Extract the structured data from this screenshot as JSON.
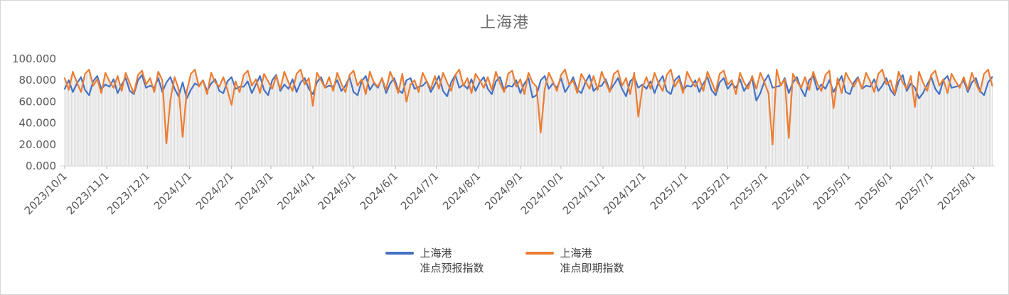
{
  "title": "上海港",
  "colors": {
    "series_forecast": "#4472C4",
    "series_spot": "#ED7D31",
    "axis_line": "#D9D9D9",
    "tick_mark": "#BFBFBF",
    "axis_text": "#595959",
    "title_text": "#6F6F6F",
    "legend_text": "#3F3F3F",
    "drop_lines": "#DBDBDB",
    "background": "#FFFFFF"
  },
  "legend": {
    "items": [
      {
        "line1": "上海港",
        "line2": "准点预报指数",
        "color": "#4472C4"
      },
      {
        "line1": "上海港",
        "line2": "准点即期指数",
        "color": "#ED7D31"
      }
    ]
  },
  "chart_data": {
    "type": "line",
    "title": "上海港",
    "xlabel": "",
    "ylabel": "",
    "ylim": [
      0,
      100
    ],
    "grid": "none",
    "legend_position": "bottom",
    "x_start_date": "2023/10/1",
    "x_step_days": 3,
    "x_tick_labels": [
      "2023/10/1",
      "2023/11/1",
      "2023/12/1",
      "2024/1/1",
      "2024/2/1",
      "2024/3/1",
      "2024/4/1",
      "2024/5/1",
      "2024/6/1",
      "2024/7/1",
      "2024/8/1",
      "2024/9/1",
      "2024/10/1",
      "2024/11/1",
      "2024/12/1",
      "2025/1/1",
      "2025/2/1",
      "2025/3/1",
      "2025/4/1",
      "2025/5/1",
      "2025/6/1",
      "2025/7/1",
      "2025/8/1"
    ],
    "y_ticks": [
      {
        "label": "0.000",
        "value": 0
      },
      {
        "label": "20.000",
        "value": 20
      },
      {
        "label": "40.000",
        "value": 40
      },
      {
        "label": "60.000",
        "value": 60
      },
      {
        "label": "80.000",
        "value": 80
      },
      {
        "label": "100.000",
        "value": 100
      }
    ],
    "plot_style": {
      "drop_lines": true,
      "drop_line_color": "#DBDBDB"
    },
    "series": [
      {
        "name": "上海港准点预报指数",
        "color": "#4472C4",
        "values": [
          72,
          80,
          69,
          77,
          83,
          71,
          66,
          79,
          84,
          72,
          76,
          74,
          81,
          68,
          76,
          82,
          70,
          67,
          80,
          85,
          73,
          75,
          73,
          82,
          69,
          78,
          83,
          72,
          65,
          78,
          63,
          71,
          77,
          75,
          80,
          70,
          77,
          81,
          70,
          68,
          79,
          83,
          72,
          74,
          74,
          79,
          68,
          76,
          84,
          71,
          66,
          80,
          85,
          70,
          76,
          72,
          81,
          69,
          78,
          82,
          72,
          67,
          78,
          83,
          73,
          75,
          74,
          80,
          70,
          75,
          83,
          69,
          66,
          79,
          84,
          71,
          77,
          73,
          82,
          68,
          77,
          82,
          71,
          68,
          80,
          82,
          72,
          74,
          75,
          79,
          69,
          76,
          84,
          70,
          65,
          78,
          85,
          73,
          76,
          72,
          81,
          70,
          78,
          83,
          72,
          67,
          79,
          83,
          71,
          75,
          74,
          80,
          68,
          77,
          82,
          64,
          66,
          80,
          84,
          72,
          77,
          73,
          82,
          69,
          75,
          83,
          71,
          68,
          78,
          85,
          70,
          74,
          75,
          81,
          70,
          76,
          82,
          72,
          65,
          79,
          83,
          73,
          76,
          72,
          79,
          68,
          78,
          84,
          70,
          67,
          80,
          84,
          71,
          75,
          74,
          80,
          69,
          77,
          83,
          71,
          66,
          78,
          82,
          72,
          77,
          73,
          81,
          70,
          76,
          82,
          61,
          68,
          79,
          85,
          73,
          74,
          75,
          82,
          68,
          78,
          83,
          72,
          65,
          80,
          84,
          71,
          76,
          72,
          80,
          69,
          77,
          84,
          69,
          67,
          78,
          83,
          72,
          75,
          74,
          81,
          70,
          75,
          82,
          71,
          66,
          79,
          85,
          70,
          77,
          73,
          63,
          68,
          76,
          83,
          72,
          67,
          80,
          84,
          73,
          74,
          75,
          80,
          69,
          78,
          82,
          70,
          66,
          78,
          83
        ]
      },
      {
        "name": "上海港准点即期指数",
        "color": "#ED7D31",
        "values": [
          82,
          71,
          88,
          78,
          69,
          86,
          90,
          75,
          81,
          68,
          87,
          79,
          73,
          84,
          70,
          87,
          77,
          68,
          85,
          89,
          76,
          82,
          69,
          88,
          80,
          21,
          62,
          83,
          72,
          27,
          70,
          86,
          90,
          74,
          80,
          67,
          87,
          78,
          74,
          83,
          71,
          57,
          79,
          69,
          85,
          89,
          75,
          81,
          68,
          86,
          79,
          72,
          84,
          72,
          88,
          78,
          70,
          86,
          90,
          76,
          82,
          56,
          87,
          80,
          73,
          83,
          70,
          87,
          77,
          69,
          85,
          89,
          75,
          81,
          67,
          88,
          78,
          74,
          82,
          71,
          88,
          79,
          68,
          86,
          60,
          76,
          80,
          69,
          87,
          79,
          72,
          84,
          72,
          87,
          78,
          70,
          85,
          90,
          75,
          82,
          68,
          86,
          80,
          73,
          83,
          71,
          88,
          77,
          69,
          86,
          89,
          74,
          81,
          67,
          87,
          78,
          74,
          31,
          72,
          87,
          79,
          70,
          85,
          90,
          76,
          80,
          68,
          86,
          79,
          72,
          84,
          71,
          88,
          78,
          69,
          86,
          89,
          75,
          82,
          67,
          87,
          46,
          73,
          83,
          72,
          87,
          77,
          70,
          85,
          90,
          74,
          81,
          68,
          88,
          80,
          74,
          82,
          70,
          88,
          79,
          69,
          86,
          89,
          76,
          80,
          67,
          87,
          78,
          72,
          84,
          72,
          87,
          78,
          68,
          20,
          90,
          75,
          81,
          26,
          86,
          79,
          73,
          83,
          71,
          88,
          77,
          70,
          85,
          89,
          54,
          82,
          68,
          87,
          80,
          74,
          82,
          72,
          87,
          79,
          69,
          86,
          90,
          76,
          80,
          67,
          88,
          78,
          72,
          84,
          55,
          88,
          78,
          70,
          85,
          89,
          75,
          81,
          68,
          86,
          79,
          73,
          83,
          71,
          87,
          77,
          69,
          86,
          90,
          75
        ]
      }
    ]
  }
}
